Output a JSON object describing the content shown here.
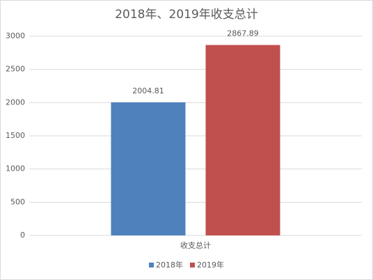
{
  "chart_data": {
    "type": "bar",
    "title": "2018年、2019年收支总计",
    "categories": [
      "收支总计"
    ],
    "series": [
      {
        "name": "2018年",
        "color": "#4f81bd",
        "values": [
          2004.81
        ]
      },
      {
        "name": "2019年",
        "color": "#c0504d",
        "values": [
          2867.89
        ]
      }
    ],
    "ylim": [
      0,
      3000
    ],
    "yticks": [
      0,
      500,
      1000,
      1500,
      2000,
      2500,
      3000
    ],
    "grid": true,
    "legend": "bottom"
  }
}
